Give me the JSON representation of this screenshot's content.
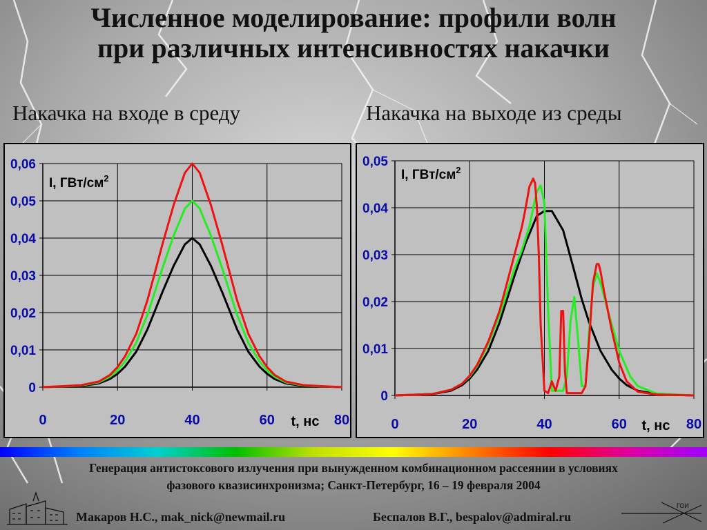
{
  "slide": {
    "title_line1": "Численное моделирование: профили волн",
    "title_line2": "при различных интенсивностях накачки",
    "subtitle_left": "Накачка на входе в среду",
    "subtitle_right": "Накачка на выходе из среды",
    "footer_line1": "Генерация антистоксового излучения при вынужденном комбинационном рассеянии в условиях",
    "footer_line2": "фазового квазисинхронизма; Санкт-Петербург, 16 – 19 февраля  2004",
    "author1": "Макаров Н.С., mak_nick@newmail.ru",
    "author2": "Беспалов В.Г., bespalov@admiral.ru",
    "logo_right_text": "ГОИ"
  },
  "colors": {
    "series_black": "#000000",
    "series_green": "#22ee22",
    "series_red": "#ee1111",
    "axis_tick": "#0a0aa8"
  },
  "chart_data": [
    {
      "type": "line",
      "ylabel": "I, ГВт/см",
      "ylabel_sup": "2",
      "xlabel": "t, нс",
      "xlim": [
        0,
        80
      ],
      "ylim": [
        0,
        0.06
      ],
      "x_ticks": [
        0,
        20,
        40,
        60,
        80
      ],
      "y_ticks": [
        0,
        0.01,
        0.02,
        0.03,
        0.04,
        0.05,
        0.06
      ],
      "y_tick_labels": [
        "0",
        "0,01",
        "0,02",
        "0,03",
        "0,04",
        "0,05",
        "0,06"
      ],
      "grid": true,
      "series": [
        {
          "color": "#000000",
          "x": [
            0,
            10,
            15,
            18,
            20,
            22,
            25,
            28,
            30,
            32,
            35,
            38,
            40,
            42,
            45,
            48,
            50,
            52,
            55,
            58,
            60,
            62,
            65,
            70,
            80
          ],
          "y": [
            0,
            0.0003,
            0.001,
            0.0022,
            0.0036,
            0.0055,
            0.0095,
            0.0155,
            0.0205,
            0.0255,
            0.0325,
            0.0383,
            0.04,
            0.0383,
            0.0325,
            0.0255,
            0.0205,
            0.0155,
            0.0095,
            0.0055,
            0.0036,
            0.0022,
            0.001,
            0.0003,
            0
          ]
        },
        {
          "color": "#22ee22",
          "x": [
            0,
            10,
            15,
            18,
            20,
            22,
            25,
            28,
            30,
            32,
            35,
            38,
            40,
            42,
            45,
            48,
            50,
            52,
            55,
            58,
            60,
            62,
            65,
            70,
            80
          ],
          "y": [
            0,
            0.0004,
            0.0013,
            0.0028,
            0.0045,
            0.0069,
            0.0119,
            0.0194,
            0.0256,
            0.0319,
            0.0406,
            0.0479,
            0.05,
            0.0479,
            0.0406,
            0.0319,
            0.0256,
            0.0194,
            0.0119,
            0.0069,
            0.0045,
            0.0028,
            0.0013,
            0.0004,
            0
          ]
        },
        {
          "color": "#ee1111",
          "x": [
            0,
            10,
            15,
            18,
            20,
            22,
            25,
            28,
            30,
            32,
            35,
            38,
            40,
            42,
            45,
            48,
            50,
            52,
            55,
            58,
            60,
            62,
            65,
            70,
            80
          ],
          "y": [
            0,
            0.0005,
            0.0015,
            0.0033,
            0.0054,
            0.0083,
            0.0143,
            0.0233,
            0.0308,
            0.0383,
            0.0488,
            0.0575,
            0.06,
            0.0575,
            0.0488,
            0.0383,
            0.0308,
            0.0233,
            0.0143,
            0.0083,
            0.0054,
            0.0033,
            0.0015,
            0.0005,
            0
          ]
        }
      ]
    },
    {
      "type": "line",
      "ylabel": "I, ГВт/см",
      "ylabel_sup": "2",
      "xlabel": "t, нс",
      "xlim": [
        0,
        80
      ],
      "ylim": [
        0,
        0.05
      ],
      "x_ticks": [
        0,
        20,
        40,
        60,
        80
      ],
      "y_ticks": [
        0,
        0.01,
        0.02,
        0.03,
        0.04,
        0.05
      ],
      "y_tick_labels": [
        "0",
        "0,01",
        "0,02",
        "0,03",
        "0,04",
        "0,05"
      ],
      "grid": true,
      "series": [
        {
          "color": "#000000",
          "x": [
            0,
            10,
            15,
            18,
            20,
            22,
            25,
            28,
            30,
            32,
            35,
            38,
            40,
            42,
            45,
            48,
            50,
            52,
            55,
            58,
            60,
            62,
            65,
            70,
            80
          ],
          "y": [
            0,
            0.0003,
            0.001,
            0.0022,
            0.0036,
            0.0055,
            0.0095,
            0.0155,
            0.0205,
            0.0255,
            0.0325,
            0.0383,
            0.0393,
            0.0393,
            0.0352,
            0.0265,
            0.0205,
            0.0155,
            0.0095,
            0.0055,
            0.0036,
            0.0022,
            0.001,
            0.0003,
            0
          ]
        },
        {
          "color": "#22ee22",
          "x": [
            0,
            10,
            15,
            18,
            20,
            22,
            25,
            28,
            30,
            32,
            34,
            36,
            37,
            38,
            39,
            40,
            41,
            42,
            44,
            45,
            46,
            47,
            48,
            49,
            50,
            51,
            52,
            53,
            54,
            55,
            57,
            60,
            63,
            65,
            70,
            80
          ],
          "y": [
            0,
            0.0003,
            0.0012,
            0.0025,
            0.004,
            0.0062,
            0.011,
            0.017,
            0.022,
            0.027,
            0.031,
            0.036,
            0.04,
            0.0435,
            0.0447,
            0.041,
            0.018,
            0.001,
            0.001,
            0.001,
            0.004,
            0.016,
            0.021,
            0.012,
            0.002,
            0.002,
            0.014,
            0.023,
            0.026,
            0.024,
            0.018,
            0.0095,
            0.004,
            0.002,
            0.0004,
            0
          ]
        },
        {
          "color": "#ee1111",
          "x": [
            0,
            10,
            15,
            18,
            20,
            22,
            25,
            28,
            30,
            32,
            34,
            35,
            36,
            37,
            37.5,
            38,
            38.5,
            39,
            40,
            41,
            42,
            43,
            44,
            44.5,
            45,
            45.5,
            46,
            47,
            48,
            49,
            50,
            51,
            52,
            53,
            54,
            54.5,
            55,
            56,
            58,
            60,
            62,
            65,
            70,
            80
          ],
          "y": [
            0,
            0.0003,
            0.0012,
            0.0025,
            0.0042,
            0.0065,
            0.0115,
            0.018,
            0.024,
            0.03,
            0.036,
            0.04,
            0.0445,
            0.0462,
            0.0452,
            0.04,
            0.03,
            0.015,
            0.001,
            0.0005,
            0.003,
            0.001,
            0.004,
            0.018,
            0.018,
            0.005,
            0.0005,
            0.0005,
            0.0005,
            0.0005,
            0.0005,
            0.002,
            0.012,
            0.024,
            0.028,
            0.028,
            0.0265,
            0.022,
            0.014,
            0.007,
            0.003,
            0.0008,
            0.0002,
            0
          ]
        }
      ]
    }
  ]
}
